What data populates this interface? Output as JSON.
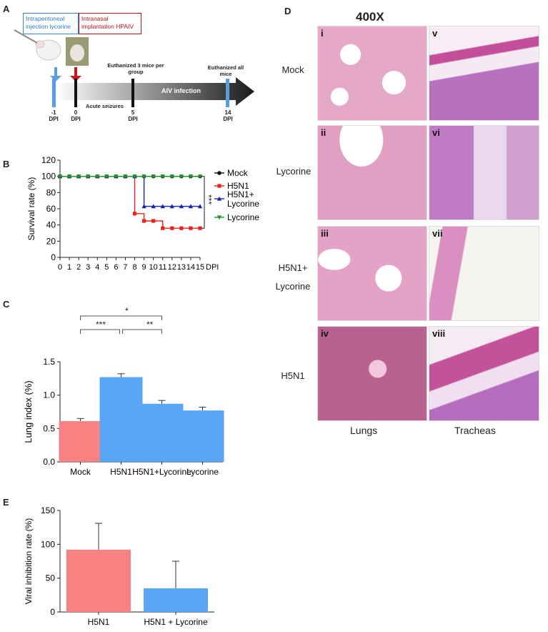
{
  "panel_letters": {
    "a": "A",
    "b": "B",
    "c": "C",
    "d": "D",
    "e": "E"
  },
  "panel_a": {
    "box_blue": "Intraperitoneal injection lycorine",
    "box_red": "Intranasal implantation HPAIV",
    "seizures": "Acute seizures",
    "euth3": "Euthanized 3 mice per group",
    "euthall": "Euthanized all mice",
    "infection": "AIV infection",
    "timepoints": [
      {
        "num": "-1",
        "unit": "DPI"
      },
      {
        "num": "0",
        "unit": "DPI"
      },
      {
        "num": "5",
        "unit": "DPI"
      },
      {
        "num": "14",
        "unit": "DPI"
      }
    ]
  },
  "panel_b_sig": "***",
  "panel_c_sig": {
    "s1": "*",
    "s2": "***",
    "s3": "**"
  },
  "chart_data": [
    {
      "id": "B",
      "type": "line",
      "ylabel": "Survival rate (%)",
      "xlabel": "DPI",
      "ylim": [
        0,
        120
      ],
      "x": [
        0,
        1,
        2,
        3,
        4,
        5,
        6,
        7,
        8,
        9,
        10,
        11,
        12,
        13,
        14,
        15
      ],
      "series": [
        {
          "name": "Mock",
          "color": "#111111",
          "marker": "circle",
          "values": [
            100,
            100,
            100,
            100,
            100,
            100,
            100,
            100,
            100,
            100,
            100,
            100,
            100,
            100,
            100,
            100
          ]
        },
        {
          "name": "H5N1",
          "color": "#e8231a",
          "marker": "square",
          "values": [
            100,
            100,
            100,
            100,
            100,
            100,
            100,
            100,
            54,
            45,
            45,
            36,
            36,
            36,
            36,
            36
          ]
        },
        {
          "name": "H5N1+ Lycorine",
          "color": "#1a22b0",
          "marker": "triangle",
          "values": [
            100,
            100,
            100,
            100,
            100,
            100,
            100,
            100,
            100,
            63,
            63,
            63,
            63,
            63,
            63,
            63
          ]
        },
        {
          "name": "Lycorine",
          "color": "#1f9a2a",
          "marker": "triangle-down",
          "values": [
            100,
            100,
            100,
            100,
            100,
            100,
            100,
            100,
            100,
            100,
            100,
            100,
            100,
            100,
            100,
            100
          ]
        }
      ],
      "yticks": [
        0,
        20,
        40,
        60,
        80,
        100,
        120
      ],
      "legend": "right"
    },
    {
      "id": "C",
      "type": "bar",
      "ylabel": "Lung index (%)",
      "ylim": [
        0,
        1.5
      ],
      "yticks": [
        "0.0",
        "0.5",
        "1.0",
        "1.5"
      ],
      "categories": [
        "Mock",
        "H5N1",
        "H5N1+Lycorine",
        "Lycorine"
      ],
      "values": [
        0.61,
        1.27,
        0.87,
        0.77
      ],
      "errors": [
        0.04,
        0.05,
        0.05,
        0.05
      ],
      "colors": [
        "#f98181",
        "#5aa6f5",
        "#5aa6f5",
        "#5aa6f5"
      ]
    },
    {
      "id": "E",
      "type": "bar",
      "ylabel": "Viral inhibition rate (%)",
      "ylim": [
        0,
        150
      ],
      "yticks": [
        "0",
        "50",
        "100",
        "150"
      ],
      "categories": [
        "H5N1",
        "H5N1 + Lycorine"
      ],
      "values": [
        92,
        35
      ],
      "errors": [
        39,
        40
      ],
      "colors": [
        "#f98181",
        "#5aa6f5"
      ]
    }
  ],
  "panel_d": {
    "magnification": "400X",
    "rows": [
      "Mock",
      "Lycorine",
      "H5N1+ Lycorine",
      "H5N1"
    ],
    "cols": [
      "Lungs",
      "Tracheas"
    ],
    "labels": [
      "i",
      "v",
      "ii",
      "vi",
      "iii",
      "vii",
      "iv",
      "viii"
    ]
  }
}
